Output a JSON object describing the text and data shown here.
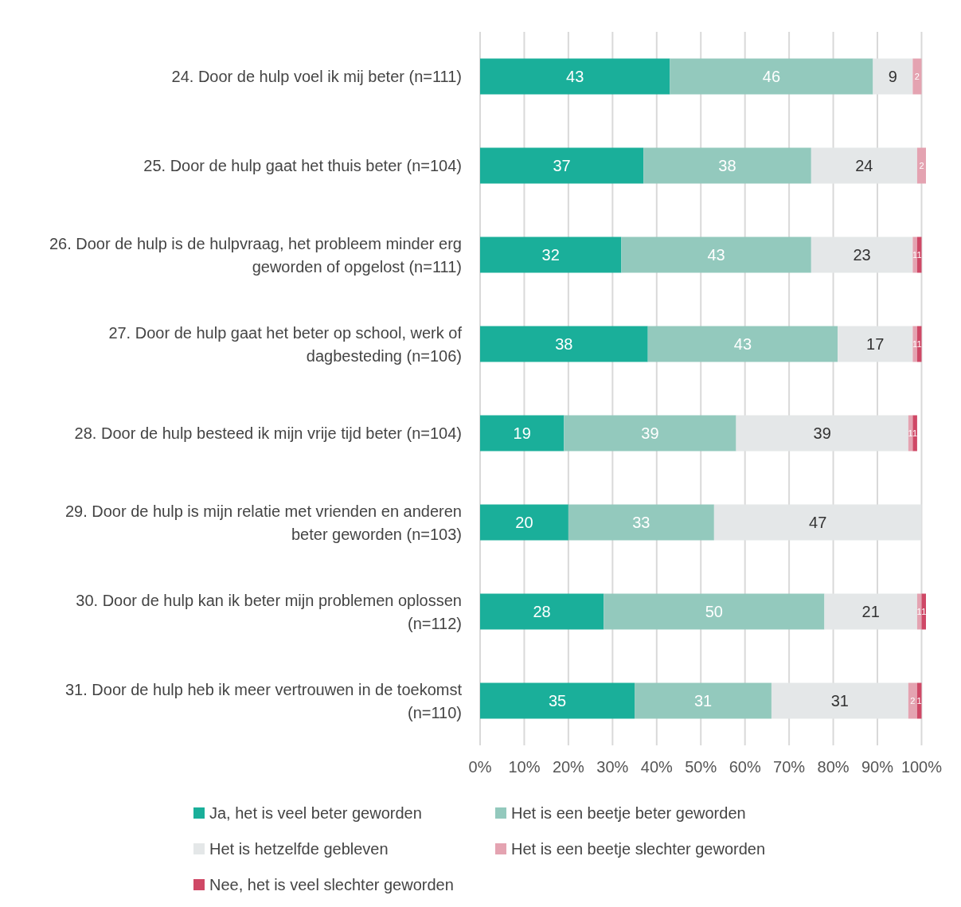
{
  "chart_data": {
    "type": "bar",
    "orientation": "horizontal",
    "stacked": true,
    "data_labels": true,
    "grid": "x",
    "legend": "bottom",
    "categories": [
      "24. Door de hulp voel ik mij beter (n=111)",
      "25. Door de hulp gaat het thuis beter (n=104)",
      "26. Door de hulp is de hulpvraag, het probleem minder erg geworden of opgelost (n=111)",
      "27. Door de hulp gaat het beter op school, werk of dagbesteding (n=106)",
      "28. Door de hulp besteed ik mijn vrije tijd beter (n=104)",
      "29. Door de hulp is mijn relatie met vrienden en anderen beter geworden (n=103)",
      "30. Door de hulp kan ik beter mijn problemen oplossen (n=112)",
      "31. Door de hulp heb ik meer vertrouwen in de toekomst (n=110)"
    ],
    "series": [
      {
        "name": "Ja, het is veel beter geworden",
        "color": "#1aaf9a",
        "values": [
          43,
          37,
          32,
          38,
          19,
          20,
          28,
          35
        ]
      },
      {
        "name": "Het is een beetje beter geworden",
        "color": "#93c9bd",
        "values": [
          46,
          38,
          43,
          43,
          39,
          33,
          50,
          31
        ]
      },
      {
        "name": "Het is hetzelfde gebleven",
        "color": "#e4e7e8",
        "values": [
          9,
          24,
          23,
          17,
          39,
          47,
          21,
          31
        ]
      },
      {
        "name": "Het is een beetje slechter geworden",
        "color": "#e4a3b1",
        "values": [
          2,
          2,
          1,
          1,
          1,
          null,
          1,
          2
        ]
      },
      {
        "name": "Nee, het is veel slechter geworden",
        "color": "#cf4866",
        "values": [
          null,
          null,
          1,
          1,
          1,
          null,
          1,
          1
        ]
      }
    ],
    "xlim": [
      0,
      101
    ],
    "xticks": [
      {
        "value": 0,
        "label": "0%"
      },
      {
        "value": 10,
        "label": "10%"
      },
      {
        "value": 20,
        "label": "20%"
      },
      {
        "value": 30,
        "label": "30%"
      },
      {
        "value": 40,
        "label": "40%"
      },
      {
        "value": 50,
        "label": "50%"
      },
      {
        "value": 60,
        "label": "60%"
      },
      {
        "value": 70,
        "label": "70%"
      },
      {
        "value": 80,
        "label": "80%"
      },
      {
        "value": 90,
        "label": "90%"
      },
      {
        "value": 100,
        "label": "100%"
      }
    ]
  }
}
